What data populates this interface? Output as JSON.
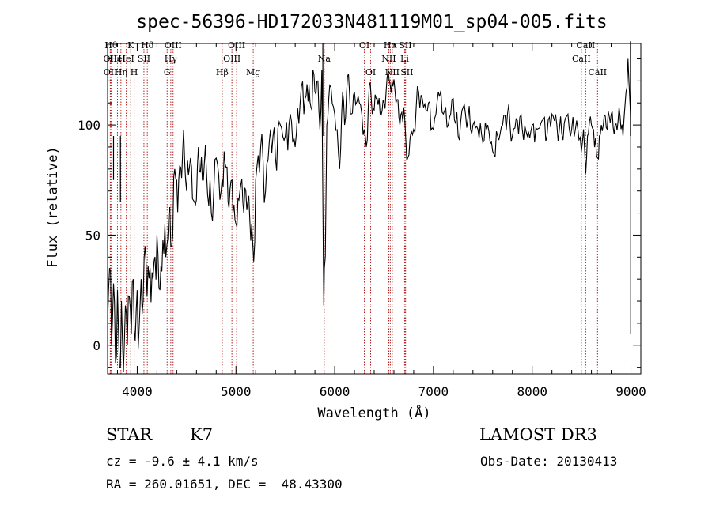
{
  "chart_data": {
    "type": "line",
    "title": "spec-56396-HD172033N481119M01_sp04-005.fits",
    "xlabel": "Wavelength (Å)",
    "ylabel": "Flux (relative)",
    "xlim": [
      3700,
      9100
    ],
    "ylim": [
      -13,
      137
    ],
    "xticks": [
      4000,
      5000,
      6000,
      7000,
      8000,
      9000
    ],
    "yticks": [
      0,
      50,
      100
    ],
    "grid": false,
    "series": [
      {
        "name": "spectrum",
        "color": "#000000",
        "x": [
          3700,
          3720,
          3740,
          3760,
          3780,
          3800,
          3820,
          3840,
          3860,
          3880,
          3900,
          3920,
          3940,
          3960,
          3980,
          4000,
          4020,
          4040,
          4060,
          4080,
          4100,
          4130,
          4160,
          4200,
          4230,
          4260,
          4290,
          4320,
          4350,
          4380,
          4420,
          4460,
          4500,
          4540,
          4580,
          4620,
          4660,
          4700,
          4750,
          4800,
          4850,
          4880,
          4920,
          4960,
          5000,
          5040,
          5080,
          5120,
          5160,
          5180,
          5200,
          5250,
          5300,
          5350,
          5400,
          5450,
          5500,
          5550,
          5600,
          5650,
          5700,
          5740,
          5760,
          5780,
          5800,
          5830,
          5850,
          5870,
          5885,
          5890,
          5895,
          5905,
          5920,
          5950,
          6000,
          6050,
          6080,
          6100,
          6130,
          6160,
          6200,
          6250,
          6300,
          6320,
          6350,
          6380,
          6420,
          6460,
          6500,
          6540,
          6563,
          6580,
          6620,
          6660,
          6700,
          6740,
          6800,
          6850,
          6900,
          6950,
          7000,
          7050,
          7100,
          7150,
          7200,
          7250,
          7300,
          7350,
          7400,
          7450,
          7500,
          7550,
          7600,
          7650,
          7700,
          7750,
          7800,
          7850,
          7900,
          7950,
          8000,
          8050,
          8100,
          8150,
          8200,
          8250,
          8300,
          8350,
          8400,
          8450,
          8498,
          8520,
          8542,
          8560,
          8600,
          8662,
          8680,
          8720,
          8760,
          8800,
          8840,
          8880,
          8920,
          8950,
          8970,
          8990,
          9000
        ],
        "y": [
          10,
          35,
          0,
          28,
          -8,
          25,
          -10,
          20,
          -12,
          18,
          0,
          22,
          5,
          30,
          2,
          25,
          8,
          30,
          20,
          45,
          22,
          35,
          30,
          50,
          25,
          48,
          40,
          60,
          45,
          80,
          75,
          88,
          70,
          85,
          65,
          90,
          75,
          80,
          60,
          85,
          70,
          88,
          65,
          75,
          55,
          70,
          60,
          65,
          55,
          38,
          75,
          90,
          70,
          98,
          85,
          100,
          95,
          105,
          90,
          110,
          112,
          118,
          108,
          125,
          115,
          120,
          98,
          125,
          40,
          18,
          35,
          40,
          100,
          118,
          105,
          80,
          115,
          100,
          122,
          105,
          115,
          110,
          98,
          90,
          118,
          105,
          112,
          105,
          110,
          125,
          118,
          120,
          110,
          100,
          108,
          85,
          98,
          115,
          108,
          110,
          98,
          115,
          105,
          100,
          112,
          95,
          108,
          103,
          100,
          98,
          92,
          100,
          88,
          95,
          100,
          105,
          95,
          102,
          98,
          95,
          100,
          98,
          102,
          95,
          105,
          100,
          96,
          104,
          98,
          102,
          88,
          98,
          78,
          95,
          100,
          85,
          95,
          100,
          98,
          105,
          100,
          108,
          95,
          115,
          130,
          110,
          100
        ],
        "spikes": [
          {
            "x": 3760,
            "y": 75
          },
          {
            "x": 3830,
            "y": 65
          },
          {
            "x": 5880,
            "y": 137
          },
          {
            "x": 8995,
            "y": 138
          },
          {
            "x": 8998,
            "y": 5
          }
        ]
      }
    ],
    "line_markers": [
      {
        "x": 3735,
        "row": 0,
        "label": "Hθ"
      },
      {
        "x": 3727,
        "row": 1,
        "label": "OII"
      },
      {
        "x": 3729,
        "row": 2,
        "label": "OII"
      },
      {
        "x": 3800,
        "row": 1,
        "label": "HeI"
      },
      {
        "x": 3835,
        "row": 2,
        "label": "Hη"
      },
      {
        "x": 3889,
        "row": 1,
        "label": "HeI"
      },
      {
        "x": 3934,
        "row": 0,
        "label": "K"
      },
      {
        "x": 3969,
        "row": 2,
        "label": "H"
      },
      {
        "x": 4068,
        "row": 1,
        "label": "SII"
      },
      {
        "x": 4102,
        "row": 0,
        "label": "Hδ"
      },
      {
        "x": 4303,
        "row": 2,
        "label": "G"
      },
      {
        "x": 4340,
        "row": 1,
        "label": "Hγ"
      },
      {
        "x": 4363,
        "row": 0,
        "label": "OIII"
      },
      {
        "x": 4861,
        "row": 2,
        "label": "Hβ"
      },
      {
        "x": 4959,
        "row": 1,
        "label": "OIII"
      },
      {
        "x": 5007,
        "row": 0,
        "label": "OIII"
      },
      {
        "x": 5175,
        "row": 2,
        "label": "Mg"
      },
      {
        "x": 5894,
        "row": 1,
        "label": "Na"
      },
      {
        "x": 6300,
        "row": 0,
        "label": "OI"
      },
      {
        "x": 6364,
        "row": 2,
        "label": "OI"
      },
      {
        "x": 6548,
        "row": 1,
        "label": "NII"
      },
      {
        "x": 6563,
        "row": 0,
        "label": "Hα"
      },
      {
        "x": 6583,
        "row": 2,
        "label": "NII"
      },
      {
        "x": 6708,
        "row": 1,
        "label": "Li"
      },
      {
        "x": 6716,
        "row": 0,
        "label": "SII"
      },
      {
        "x": 6731,
        "row": 2,
        "label": "SII"
      },
      {
        "x": 8498,
        "row": 1,
        "label": "CaII"
      },
      {
        "x": 8542,
        "row": 0,
        "label": "CaII"
      },
      {
        "x": 8662,
        "row": 2,
        "label": "CaII"
      }
    ],
    "marker_color": "#b22222"
  },
  "info": {
    "object_type": "STAR",
    "subclass": "K7",
    "survey": "LAMOST DR3",
    "redshift": "cz = -9.6 ± 4.1 km/s",
    "obs_date": "Obs-Date: 20130413",
    "coords": "RA = 260.01651, DEC =  48.43300"
  }
}
